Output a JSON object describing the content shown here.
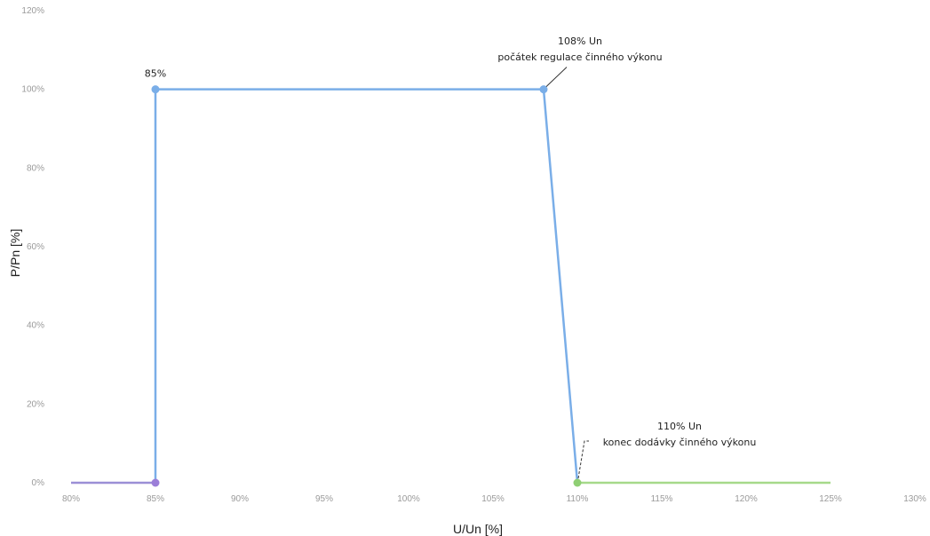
{
  "chart_data": {
    "type": "line",
    "xlabel": "U/Un [%]",
    "ylabel": "P/Pn [%]",
    "xlim": [
      80,
      130
    ],
    "ylim": [
      0,
      120
    ],
    "x_ticks": [
      80,
      85,
      90,
      95,
      100,
      105,
      110,
      115,
      120,
      125,
      130
    ],
    "x_tick_labels": [
      "80%",
      "85%",
      "90%",
      "95%",
      "100%",
      "105%",
      "110%",
      "115%",
      "120%",
      "125%",
      "130%"
    ],
    "y_ticks": [
      0,
      20,
      40,
      60,
      80,
      100,
      120
    ],
    "y_tick_labels": [
      "0%",
      "20%",
      "40%",
      "60%",
      "80%",
      "100%",
      "120%"
    ],
    "grid": false,
    "series": [
      {
        "color": "#9b8fd6",
        "points": [
          [
            80,
            0
          ],
          [
            85,
            0
          ]
        ]
      },
      {
        "color": "#7aaee8",
        "points": [
          [
            85,
            0
          ],
          [
            85,
            100
          ],
          [
            108,
            100
          ],
          [
            110,
            0
          ]
        ]
      },
      {
        "color": "#a6d98a",
        "points": [
          [
            110,
            0
          ],
          [
            125,
            0
          ]
        ]
      }
    ],
    "markers": [
      {
        "x": 85,
        "y": 0,
        "color": "#9b7ed8"
      },
      {
        "x": 85,
        "y": 100,
        "color": "#7aaee8"
      },
      {
        "x": 108,
        "y": 100,
        "color": "#7aaee8"
      },
      {
        "x": 110,
        "y": 0,
        "color": "#8fcf74"
      }
    ],
    "point_labels": [
      {
        "x": 85,
        "y": 100,
        "text": "85%"
      }
    ],
    "annotations": [
      {
        "x": 108,
        "y": 100,
        "lines": [
          "108% Un",
          "počátek regulace činného výkonu"
        ]
      },
      {
        "x": 110,
        "y": 0,
        "lines": [
          "110% Un",
          "konec dodávky činného výkonu"
        ]
      }
    ]
  }
}
